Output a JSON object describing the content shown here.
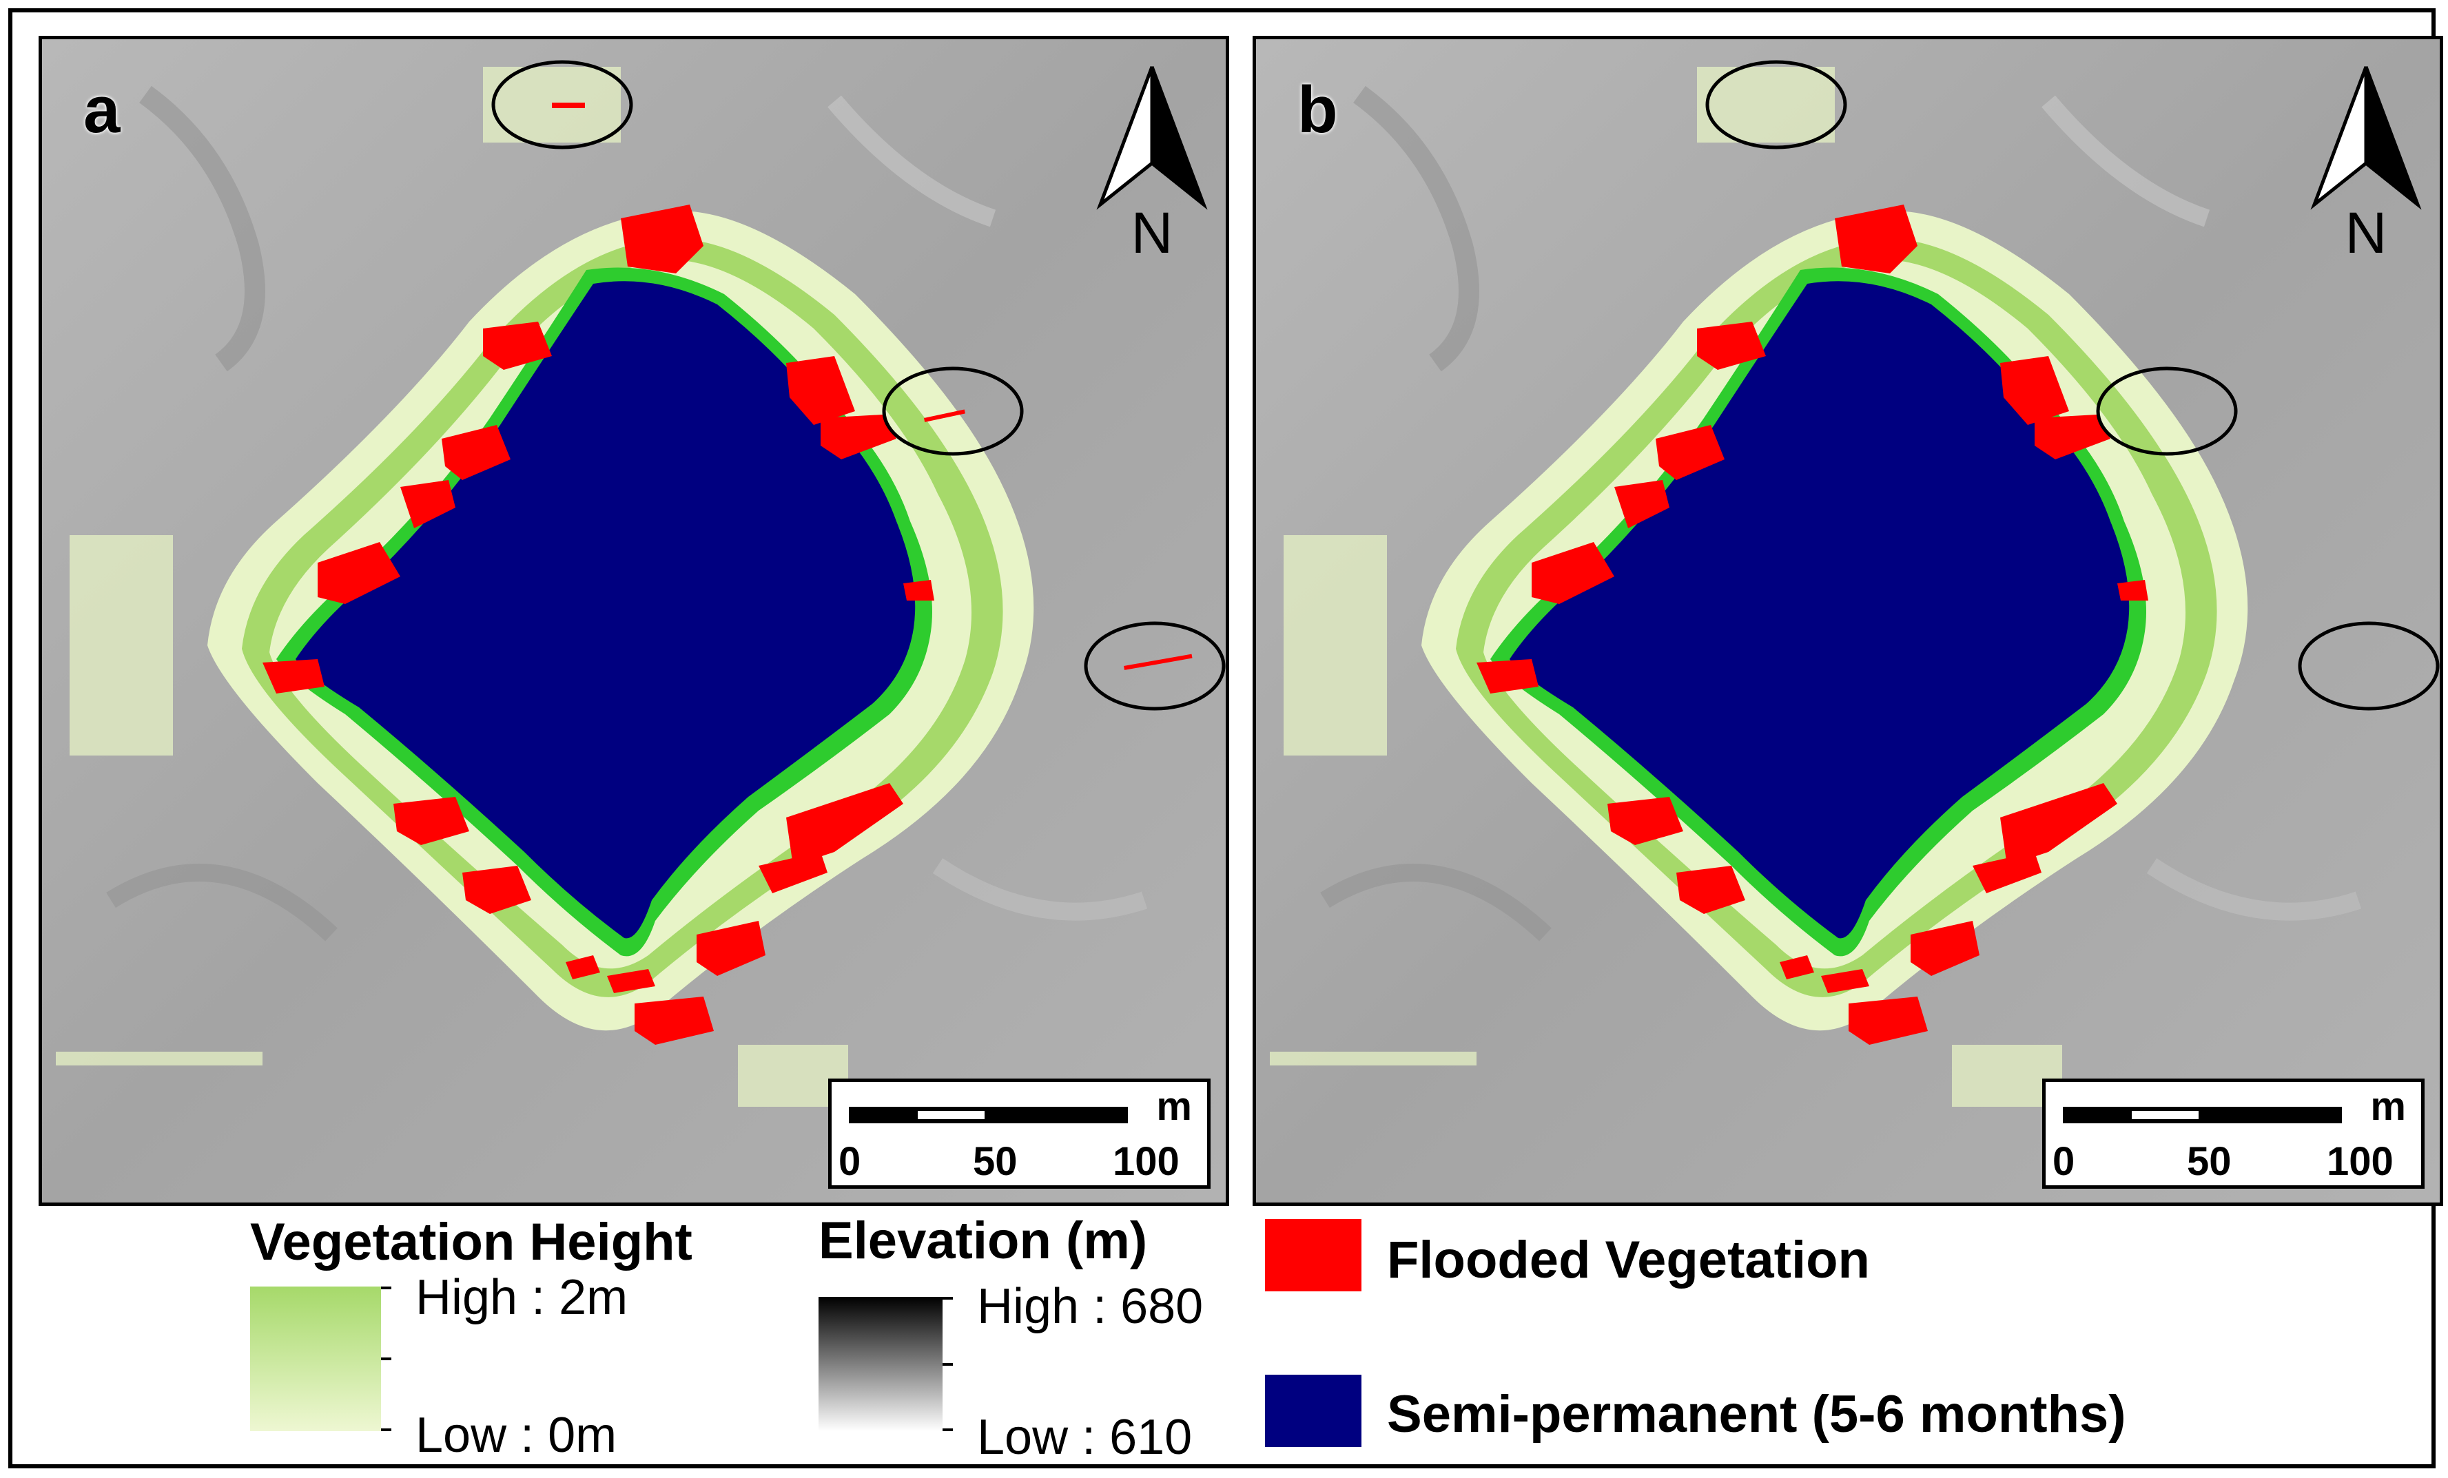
{
  "panels": [
    {
      "letter": "a",
      "north_label": "N",
      "scale": {
        "unit": "m",
        "ticks": [
          "0",
          "50",
          "100"
        ]
      }
    },
    {
      "letter": "b",
      "north_label": "N",
      "scale": {
        "unit": "m",
        "ticks": [
          "0",
          "50",
          "100"
        ]
      }
    }
  ],
  "legend": {
    "vegetation": {
      "title": "Vegetation Height",
      "high": "High : 2m",
      "low": "Low : 0m"
    },
    "elevation": {
      "title": "Elevation (m)",
      "high": "High : 680",
      "low": "Low : 610"
    },
    "classes": [
      {
        "label": "Flooded Vegetation",
        "color": "#ff0000"
      },
      {
        "label": "Semi-permanent (5-6 months)",
        "color": "#000080"
      }
    ]
  },
  "colors": {
    "hillshade": "#a9a9a9",
    "vegetation_high": "#a6d96a",
    "vegetation_low": "#eef7d2",
    "edge_green": "#2ecc2e",
    "water": "#000080",
    "flooded": "#ff0000"
  }
}
